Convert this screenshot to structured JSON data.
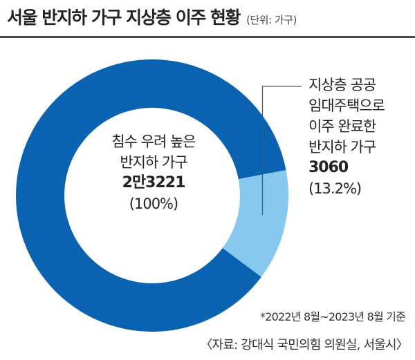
{
  "header": {
    "title": "서울 반지하 가구 지상층 이주 현황",
    "unit": "(단위: 가구)"
  },
  "chart_data": {
    "type": "pie",
    "style": "donut",
    "colors": {
      "total": "#0a63b0",
      "moved": "#86c8ee"
    },
    "slices": [
      {
        "key": "total",
        "label_lines": [
          "침수 우려 높은",
          "반지하 가구"
        ],
        "value_text": "2만3221",
        "percent_text": "(100%)",
        "value": 23221
      },
      {
        "key": "moved",
        "label_lines": [
          "지상층 공공",
          "임대주택으로",
          "이주 완료한",
          "반지하 가구"
        ],
        "value_text": "3060",
        "percent_text": "(13.2%)",
        "value": 3060,
        "share": 0.132
      }
    ]
  },
  "footer": {
    "note": "*2022년 8월~2023년 8월 기준",
    "source": "〈자료: 강대식 국민의힘 의원실, 서울시〉"
  }
}
